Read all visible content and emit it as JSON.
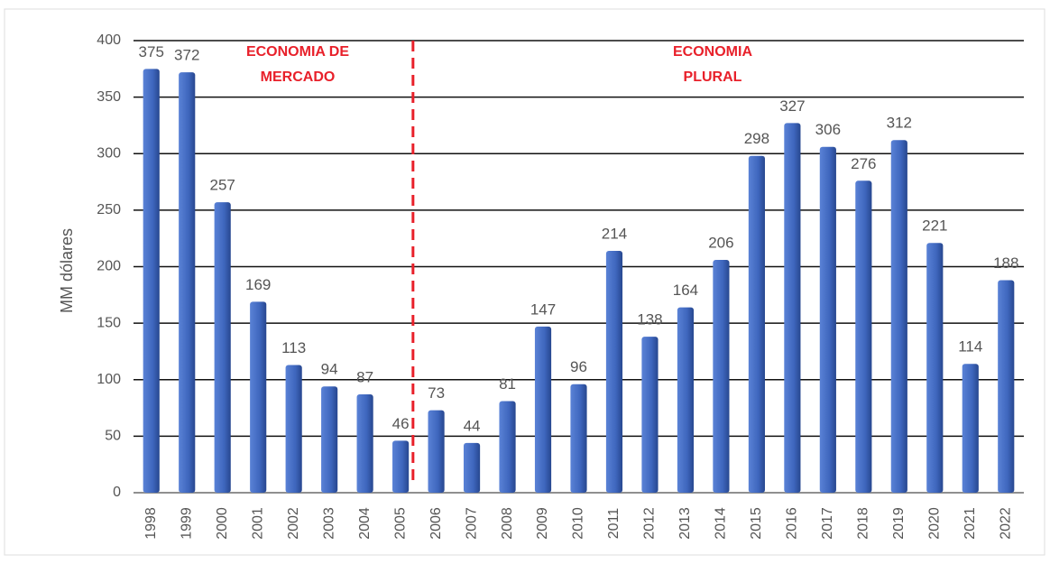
{
  "chart_data": {
    "type": "bar",
    "ylabel": "MM dólares",
    "categories": [
      "1998",
      "1999",
      "2000",
      "2001",
      "2002",
      "2003",
      "2004",
      "2005",
      "2006",
      "2007",
      "2008",
      "2009",
      "2010",
      "2011",
      "2012",
      "2013",
      "2014",
      "2015",
      "2016",
      "2017",
      "2018",
      "2019",
      "2020",
      "2021",
      "2022"
    ],
    "values": [
      375,
      372,
      257,
      169,
      113,
      94,
      87,
      46,
      73,
      44,
      81,
      147,
      96,
      214,
      138,
      164,
      206,
      298,
      327,
      306,
      276,
      312,
      221,
      114,
      188
    ],
    "color": "#3e66bd",
    "ylim": [
      0,
      400
    ],
    "yticks": [
      0,
      50,
      100,
      150,
      200,
      250,
      300,
      350,
      400
    ],
    "grid": true,
    "annotations": [
      [
        "ECONOMIA DE",
        "MERCADO"
      ],
      [
        "ECONOMIA",
        "PLURAL"
      ]
    ]
  }
}
